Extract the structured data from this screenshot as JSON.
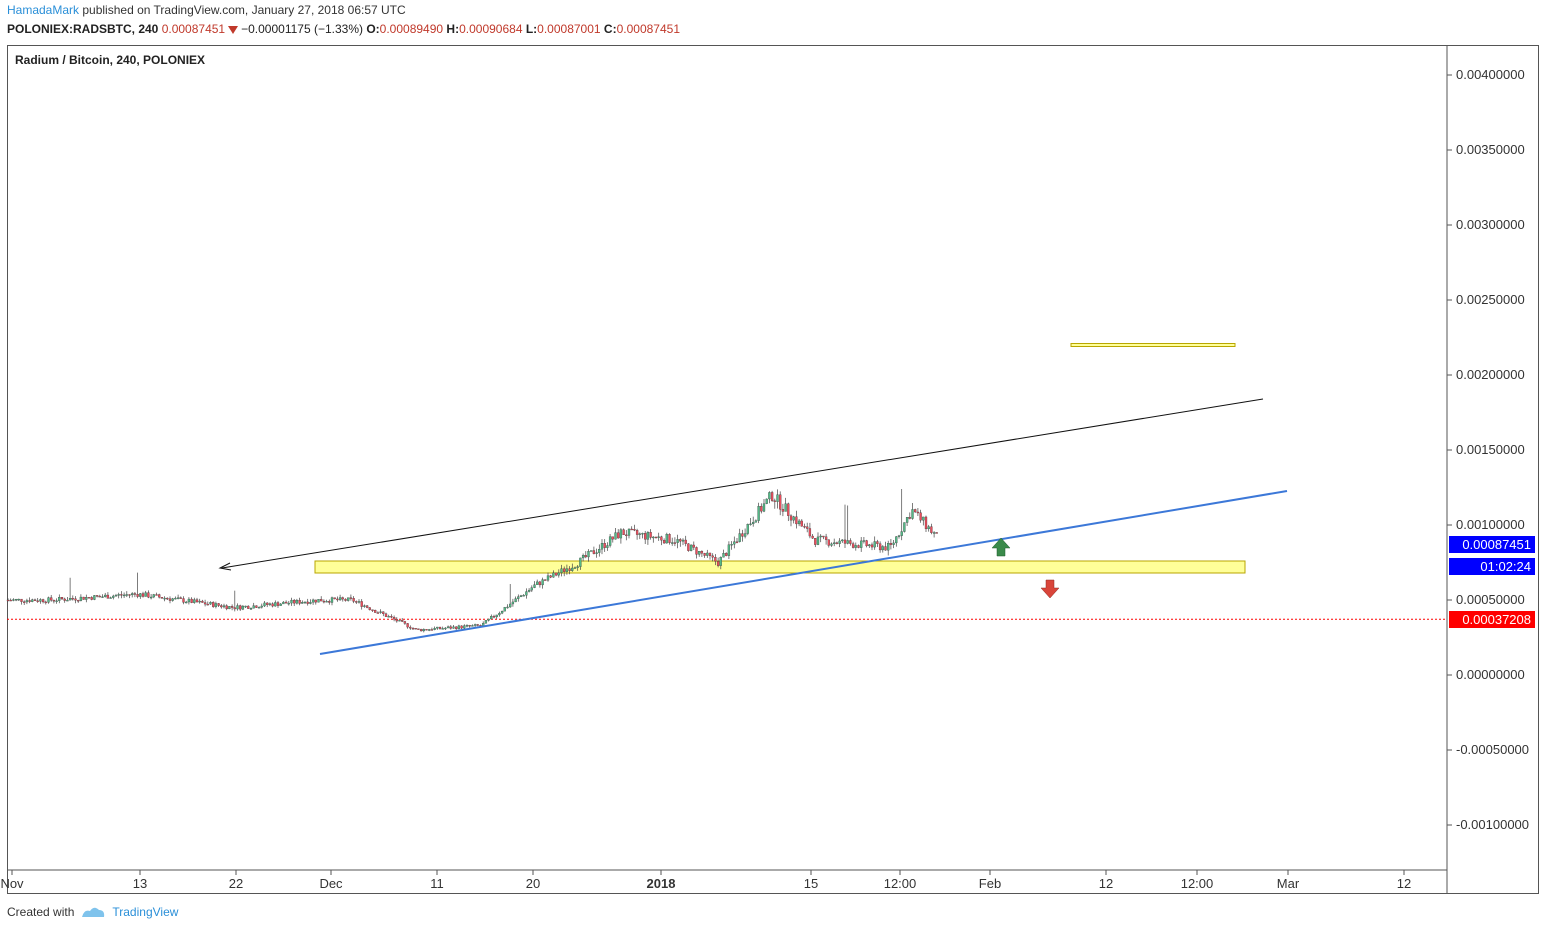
{
  "header": {
    "author": "HamadaMark",
    "published": " published on TradingView.com, January 27, 2018 06:57 UTC",
    "symbol": "POLONIEX:RADSBTC, 240",
    "last": "0.00087451",
    "change": "−0.00001175 (−1.33%)",
    "o_label": "O:",
    "o": "0.00089490",
    "h_label": "H:",
    "h": "0.00090684",
    "l_label": "L:",
    "l": "0.00087001",
    "c_label": "C:",
    "c": "0.00087451"
  },
  "chart_title": "Radium / Bitcoin, 240, POLONIEX",
  "price_tags": {
    "current": "0.00087451",
    "countdown": "01:02:24",
    "red_line": "0.00037208"
  },
  "footer": {
    "created_with": "Created with",
    "brand": "TradingView"
  },
  "colors": {
    "up": "#53b987",
    "down": "#eb4d5c",
    "blue_line": "#3c78d8",
    "zone_fill": "#ffff99",
    "zone_border": "#b8a600",
    "tag_blue": "#0000ff",
    "tag_red": "#ff0000",
    "arrow_up": "#3a8a4a",
    "arrow_down": "#d9453a"
  },
  "chart_data": {
    "type": "candlestick",
    "title": "Radium / Bitcoin, 240, POLONIEX",
    "ylim": [
      -0.0013,
      0.0042
    ],
    "y_ticks": [
      "0.00400000",
      "0.00350000",
      "0.00300000",
      "0.00250000",
      "0.00200000",
      "0.00150000",
      "0.00100000",
      "0.00050000",
      "0.00000000",
      "-0.00050000",
      "-0.00100000"
    ],
    "x_ticks": [
      "Nov",
      "13",
      "22",
      "Dec",
      "11",
      "20",
      "2018",
      "15",
      "12:00",
      "Feb",
      "12",
      "12:00",
      "Mar",
      "12"
    ],
    "approx_close_path": [
      {
        "date": "2017-11-05",
        "close": 0.0005
      },
      {
        "date": "2017-11-13",
        "close": 0.00054
      },
      {
        "date": "2017-11-22",
        "close": 0.00045
      },
      {
        "date": "2017-11-30",
        "close": 0.0005
      },
      {
        "date": "2017-12-03",
        "close": 0.0005
      },
      {
        "date": "2017-12-09",
        "close": 0.0003
      },
      {
        "date": "2017-12-15",
        "close": 0.00033
      },
      {
        "date": "2017-12-20",
        "close": 0.0006
      },
      {
        "date": "2017-12-24",
        "close": 0.00075
      },
      {
        "date": "2017-12-28",
        "close": 0.00095
      },
      {
        "date": "2018-01-02",
        "close": 0.0009
      },
      {
        "date": "2018-01-06",
        "close": 0.00075
      },
      {
        "date": "2018-01-11",
        "close": 0.0012
      },
      {
        "date": "2018-01-15",
        "close": 0.0009
      },
      {
        "date": "2018-01-22",
        "close": 0.00085
      },
      {
        "date": "2018-01-24",
        "close": 0.0011
      },
      {
        "date": "2018-01-27",
        "close": 0.00087
      }
    ],
    "annotations": [
      {
        "type": "zone",
        "y_from": 0.00068,
        "y_to": 0.00076
      },
      {
        "type": "level",
        "y": 0.0022
      },
      {
        "type": "trendline",
        "color": "black"
      },
      {
        "type": "trendline",
        "color": "blue"
      },
      {
        "type": "horizontal",
        "y": 0.00037208,
        "style": "dotted red"
      },
      {
        "type": "arrow",
        "direction": "up"
      },
      {
        "type": "arrow",
        "direction": "down"
      }
    ]
  }
}
